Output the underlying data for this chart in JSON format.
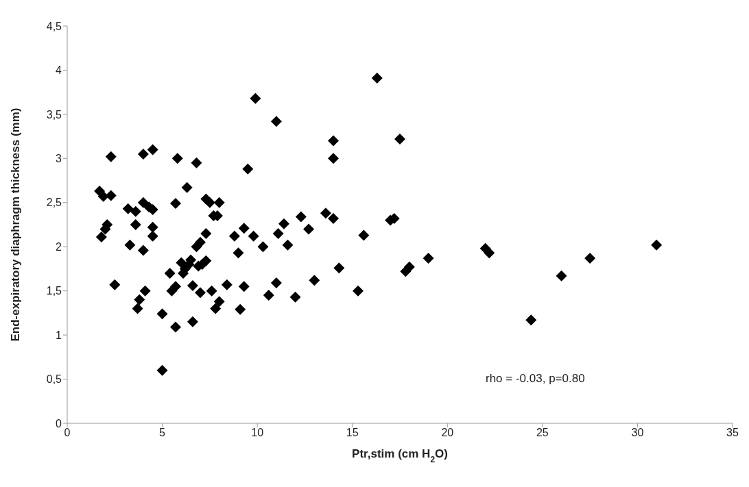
{
  "chart_data": {
    "type": "scatter",
    "xlabel": "Ptr,stim (cm H$_{2}$O)",
    "ylabel": "End-expiratory diaphragm thickness (mm)",
    "annotations": [
      "rho = -0.03, p=0.80"
    ],
    "marker": "diamond",
    "grid": false,
    "xlim": [
      0,
      35
    ],
    "xticks": [
      0,
      5,
      10,
      15,
      20,
      25,
      30,
      35
    ],
    "ylim": [
      0,
      4.5
    ],
    "yticks": [
      0,
      {
        "value": 0.5,
        "label": "0,5"
      },
      1,
      {
        "value": 1.5,
        "label": "1,5"
      },
      2,
      {
        "value": 2.5,
        "label": "2,5"
      },
      3,
      {
        "value": 3.5,
        "label": "3,5"
      },
      4,
      {
        "value": 4.5,
        "label": "4,5"
      }
    ],
    "series": [
      {
        "color": "#000000",
        "x": [
          1.7,
          1.9,
          2.0,
          2.1,
          1.8,
          2.3,
          2.3,
          2.5,
          3.2,
          3.3,
          3.6,
          3.6,
          3.7,
          3.8,
          4.0,
          4.0,
          4.0,
          4.1,
          4.3,
          4.5,
          4.5,
          4.5,
          4.5,
          5.0,
          5.0,
          5.4,
          5.5,
          5.7,
          5.7,
          5.7,
          5.8,
          6.0,
          6.1,
          6.2,
          6.3,
          6.4,
          6.5,
          6.6,
          6.6,
          6.8,
          6.8,
          6.9,
          7.0,
          7.0,
          7.1,
          7.3,
          7.3,
          7.3,
          7.5,
          7.6,
          7.7,
          7.8,
          7.9,
          8.0,
          8.0,
          8.4,
          8.8,
          9.0,
          9.1,
          9.3,
          9.3,
          9.5,
          9.8,
          9.9,
          10.3,
          10.6,
          11.0,
          11.0,
          11.1,
          11.4,
          11.6,
          12.0,
          12.3,
          12.7,
          13.0,
          13.6,
          14.0,
          14.0,
          14.0,
          14.3,
          15.3,
          15.6,
          16.3,
          17.0,
          17.2,
          17.5,
          17.8,
          18.0,
          19.0,
          22.0,
          22.2,
          24.4,
          26.0,
          27.5,
          31.0
        ],
        "values": [
          2.63,
          2.57,
          2.2,
          2.25,
          2.11,
          2.58,
          3.02,
          1.57,
          2.43,
          2.02,
          2.4,
          2.25,
          1.3,
          1.4,
          2.5,
          3.05,
          1.96,
          1.5,
          2.45,
          3.1,
          2.42,
          2.22,
          2.12,
          1.24,
          0.6,
          1.7,
          1.5,
          1.55,
          1.09,
          2.49,
          3.0,
          1.82,
          1.7,
          1.75,
          2.67,
          1.8,
          1.85,
          1.15,
          1.56,
          2.0,
          2.95,
          1.78,
          2.05,
          1.48,
          1.8,
          1.84,
          2.15,
          2.54,
          2.5,
          1.5,
          2.35,
          1.3,
          2.35,
          2.5,
          1.38,
          1.57,
          2.12,
          1.93,
          1.29,
          2.21,
          1.55,
          2.88,
          2.12,
          3.68,
          2.0,
          1.45,
          3.42,
          1.59,
          2.15,
          2.26,
          2.02,
          1.43,
          2.34,
          2.2,
          1.62,
          2.38,
          3.2,
          3.0,
          2.32,
          1.76,
          1.5,
          2.13,
          3.91,
          2.3,
          2.32,
          3.22,
          1.72,
          1.77,
          1.87,
          1.98,
          1.93,
          1.17,
          1.67,
          1.87,
          2.02
        ]
      }
    ]
  }
}
